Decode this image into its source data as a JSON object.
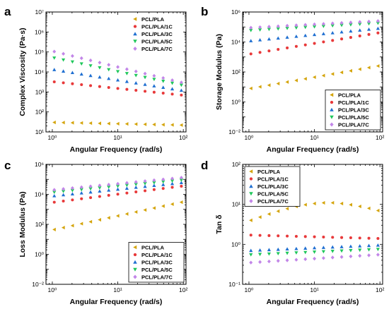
{
  "colors": {
    "PCL/PLA": "#d4a40a",
    "PCL/PLA/1C": "#e8393a",
    "PCL/PLA/3C": "#1f6fd1",
    "PCL/PLA/5C": "#1ec75a",
    "PCL/PLA/7C": "#c286e8"
  },
  "markers": {
    "PCL/PLA": "triangle-left",
    "PCL/PLA/1C": "circle",
    "PCL/PLA/3C": "triangle-up",
    "PCL/PLA/5C": "triangle-down",
    "PCL/PLA/7C": "diamond"
  },
  "chart_data": [
    {
      "panel": "a",
      "type": "scatter",
      "xlabel": "Angular Frequency (rad/s)",
      "ylabel": "Complex Viscosity (Pa·s)",
      "xscale": "log",
      "yscale": "log",
      "xlim": [
        0.8,
        110
      ],
      "ylim": [
        10,
        10000000
      ],
      "xticks": [
        1,
        10,
        100
      ],
      "yticks": [
        10,
        100,
        1000,
        10000,
        100000,
        1000000,
        10000000
      ],
      "xtick_labels": [
        "10⁰",
        "10¹",
        "10²"
      ],
      "ytick_labels": [
        "10¹",
        "10²",
        "10³",
        "10⁴",
        "10⁵",
        "10⁶",
        "10⁷"
      ],
      "legend_position": "top-right",
      "series": [
        {
          "name": "PCL/PLA",
          "y_start": 30,
          "y_end": 22
        },
        {
          "name": "PCL/PLA/1C",
          "y_start": 3200,
          "y_end": 700
        },
        {
          "name": "PCL/PLA/3C",
          "y_start": 13000,
          "y_end": 1200
        },
        {
          "name": "PCL/PLA/5C",
          "y_start": 50000,
          "y_end": 2200
        },
        {
          "name": "PCL/PLA/7C",
          "y_start": 105000,
          "y_end": 3000
        }
      ]
    },
    {
      "panel": "b",
      "type": "scatter",
      "xlabel": "Angular Frequency (rad/s)",
      "ylabel": "Storage Modulus (Pa)",
      "xscale": "log",
      "yscale": "log",
      "xlim": [
        0.8,
        110
      ],
      "ylim": [
        0.01,
        1000000
      ],
      "xticks": [
        1,
        10,
        100
      ],
      "yticks": [
        0.01,
        1,
        100,
        10000,
        1000000
      ],
      "xtick_labels": [
        "10⁰",
        "10¹",
        "10²"
      ],
      "ytick_labels": [
        "10⁻²",
        "10⁰",
        "10²",
        "10⁴",
        "10⁶"
      ],
      "legend_position": "bottom-right",
      "series": [
        {
          "name": "PCL/PLA",
          "y_start": 8,
          "y_end": 250
        },
        {
          "name": "PCL/PLA/1C",
          "y_start": 1600,
          "y_end": 40000
        },
        {
          "name": "PCL/PLA/3C",
          "y_start": 12000,
          "y_end": 80000
        },
        {
          "name": "PCL/PLA/5C",
          "y_start": 60000,
          "y_end": 180000
        },
        {
          "name": "PCL/PLA/7C",
          "y_start": 90000,
          "y_end": 250000
        }
      ]
    },
    {
      "panel": "c",
      "type": "scatter",
      "xlabel": "Angular Frequency (rad/s)",
      "ylabel": "Loss Modulus (Pa)",
      "xscale": "log",
      "yscale": "log",
      "xlim": [
        0.8,
        110
      ],
      "ylim": [
        0.01,
        1000000
      ],
      "xticks": [
        1,
        10,
        100
      ],
      "yticks": [
        0.01,
        1,
        100,
        10000,
        1000000
      ],
      "xtick_labels": [
        "10⁰",
        "10¹",
        "10²"
      ],
      "ytick_labels": [
        "10⁻²",
        "10⁰",
        "10²",
        "10⁴",
        "10⁶"
      ],
      "legend_position": "bottom-right",
      "series": [
        {
          "name": "PCL/PLA",
          "y_start": 45,
          "y_end": 3000
        },
        {
          "name": "PCL/PLA/1C",
          "y_start": 3000,
          "y_end": 35000
        },
        {
          "name": "PCL/PLA/3C",
          "y_start": 8000,
          "y_end": 60000
        },
        {
          "name": "PCL/PLA/5C",
          "y_start": 14000,
          "y_end": 90000
        },
        {
          "name": "PCL/PLA/7C",
          "y_start": 20000,
          "y_end": 130000
        }
      ]
    },
    {
      "panel": "d",
      "type": "scatter",
      "xlabel": "Angular Frequency (rad/s)",
      "ylabel": "Tan δ",
      "xscale": "log",
      "yscale": "log",
      "xlim": [
        0.8,
        110
      ],
      "ylim": [
        0.1,
        100
      ],
      "xticks": [
        1,
        10,
        100
      ],
      "yticks": [
        0.1,
        1,
        10,
        100
      ],
      "xtick_labels": [
        "10⁰",
        "10¹",
        "10²"
      ],
      "ytick_labels": [
        "10⁻¹",
        "10⁰",
        "10¹",
        "10²"
      ],
      "legend_position": "top-left",
      "series": [
        {
          "name": "PCL/PLA",
          "profile": "arch",
          "y_start": 4,
          "y_peak": 11,
          "y_end": 7
        },
        {
          "name": "PCL/PLA/1C",
          "y_start": 1.7,
          "y_end": 1.4
        },
        {
          "name": "PCL/PLA/3C",
          "y_start": 0.7,
          "y_end": 0.95
        },
        {
          "name": "PCL/PLA/5C",
          "y_start": 0.55,
          "y_end": 0.75
        },
        {
          "name": "PCL/PLA/7C",
          "y_start": 0.35,
          "y_end": 0.55
        }
      ]
    }
  ]
}
